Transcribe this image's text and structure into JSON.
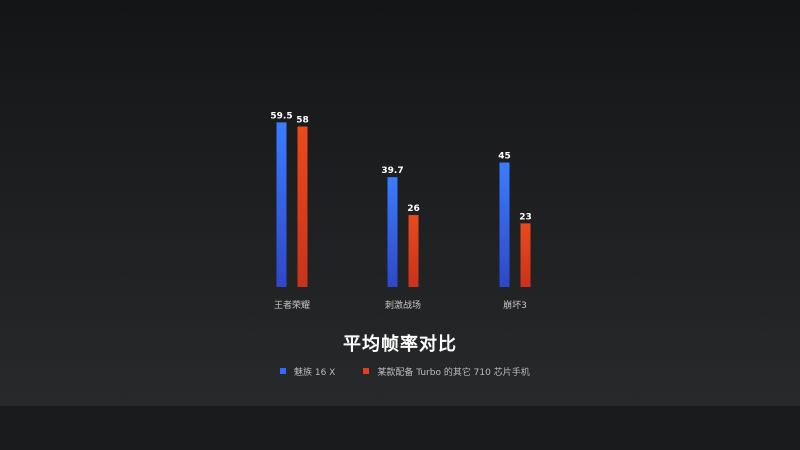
{
  "chart_data": {
    "type": "bar",
    "title": "平均帧率对比",
    "categories": [
      "王者荣耀",
      "刺激战场",
      "崩坏3"
    ],
    "series": [
      {
        "name": "魅族 16 X",
        "values": [
          59.5,
          39.7,
          45
        ],
        "color": "#2f6bff"
      },
      {
        "name": "某款配备 Turbo 的其它 710 芯片手机",
        "values": [
          58,
          26,
          23
        ],
        "color": "#e0401e"
      }
    ],
    "ylim": [
      0,
      60
    ],
    "grid": false,
    "legend": "bottom"
  }
}
